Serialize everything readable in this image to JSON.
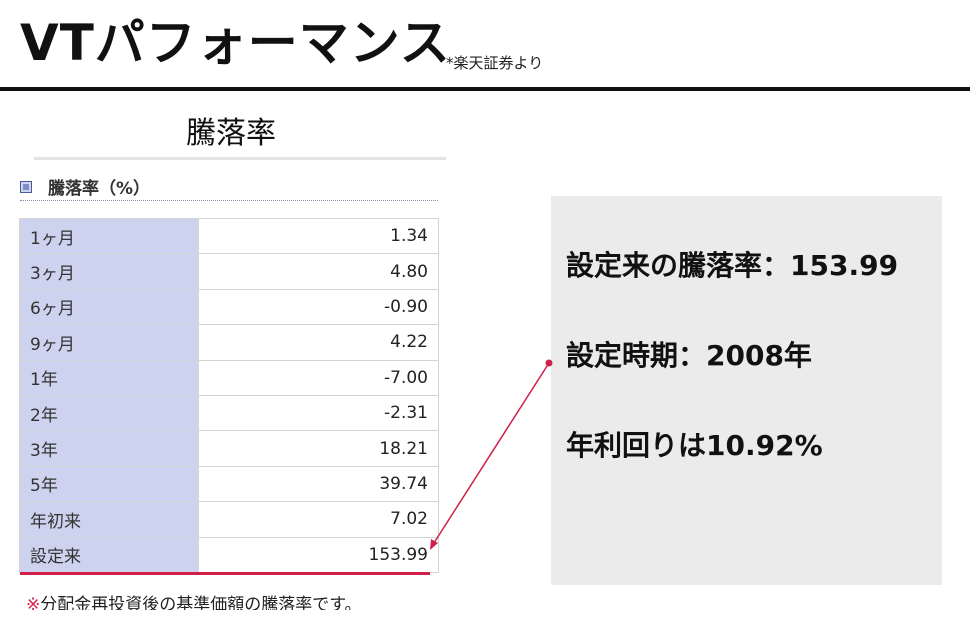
{
  "header": {
    "title": "VTパフォーマンス",
    "source_note": "*楽天証券より"
  },
  "section": {
    "heading": "騰落率"
  },
  "table": {
    "caption": "騰落率（%）",
    "rows": [
      {
        "label": "1ヶ月",
        "value": "1.34"
      },
      {
        "label": "3ヶ月",
        "value": "4.80"
      },
      {
        "label": "6ヶ月",
        "value": "-0.90"
      },
      {
        "label": "9ヶ月",
        "value": "4.22"
      },
      {
        "label": "1年",
        "value": "-7.00"
      },
      {
        "label": "2年",
        "value": "-2.31"
      },
      {
        "label": "3年",
        "value": "18.21"
      },
      {
        "label": "5年",
        "value": "39.74"
      },
      {
        "label": "年初来",
        "value": "7.02"
      },
      {
        "label": "設定来",
        "value": "153.99"
      }
    ],
    "footnote_mark": "※",
    "footnote": "分配金再投資後の基準価額の騰落率です。"
  },
  "callout": {
    "lines": [
      "設定来の騰落率：153.99",
      "設定時期：2008年",
      "年利回りは10.92%"
    ]
  },
  "colors": {
    "label_cell": "#cdd3ee",
    "highlight": "#d0204a",
    "callout_bg": "#ebebeb"
  }
}
